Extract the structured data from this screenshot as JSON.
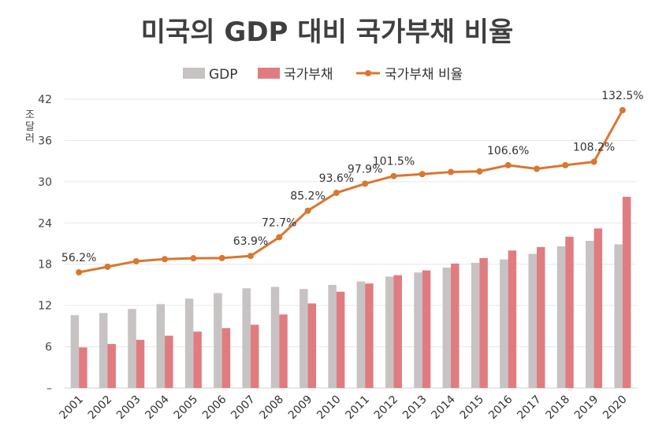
{
  "chart_data": {
    "type": "bar",
    "title": "미국의 GDP 대비 국가부채 비율",
    "ylabel": "조달러",
    "yticks": [
      "–",
      "6",
      "12",
      "18",
      "24",
      "30",
      "36",
      "42"
    ],
    "ylim": [
      0,
      42
    ],
    "grid": true,
    "legend_position": "top",
    "categories": [
      "2001",
      "2002",
      "2003",
      "2004",
      "2005",
      "2006",
      "2007",
      "2008",
      "2009",
      "2010",
      "2011",
      "2012",
      "2013",
      "2014",
      "2015",
      "2016",
      "2017",
      "2018",
      "2019",
      "2020"
    ],
    "series": [
      {
        "name": "GDP",
        "kind": "bar",
        "color": "#c7c3c3",
        "values": [
          10.6,
          10.9,
          11.5,
          12.2,
          13.0,
          13.8,
          14.5,
          14.7,
          14.4,
          15.0,
          15.5,
          16.2,
          16.8,
          17.5,
          18.2,
          18.7,
          19.5,
          20.6,
          21.4,
          20.9
        ]
      },
      {
        "name": "국가부채",
        "kind": "bar",
        "color": "#e07c80",
        "values": [
          5.9,
          6.4,
          7.0,
          7.6,
          8.2,
          8.7,
          9.2,
          10.7,
          12.3,
          14.0,
          15.2,
          16.4,
          17.1,
          18.1,
          18.9,
          20.0,
          20.5,
          22.0,
          23.2,
          27.8
        ]
      },
      {
        "name": "국가부채 비율",
        "kind": "line",
        "color": "#d9772f",
        "values": [
          56.2,
          58.8,
          61.4,
          62.4,
          62.8,
          62.9,
          63.9,
          72.7,
          85.2,
          93.6,
          97.9,
          101.5,
          102.4,
          103.4,
          103.7,
          106.6,
          104.9,
          106.6,
          108.2,
          132.5
        ],
        "point_labels": [
          "56.2%",
          "",
          "",
          "",
          "",
          "",
          "63.9%",
          "72.7%",
          "85.2%",
          "93.6%",
          "97.9%",
          "101.5%",
          "",
          "",
          "",
          "106.6%",
          "",
          "",
          "108.2%",
          "132.5%"
        ]
      }
    ]
  }
}
